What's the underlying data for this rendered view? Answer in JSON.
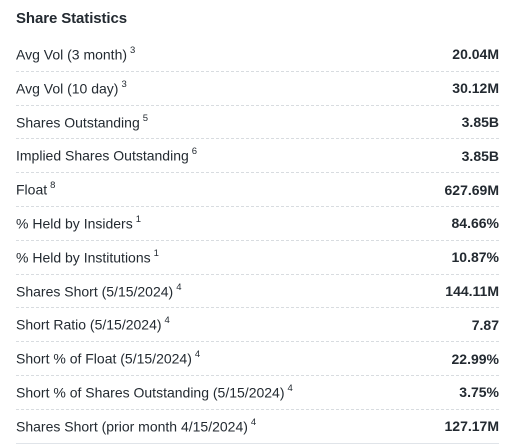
{
  "share_statistics": {
    "title": "Share Statistics",
    "rows": [
      {
        "label": "Avg Vol (3 month)",
        "footnote": "3",
        "value": "20.04M"
      },
      {
        "label": "Avg Vol (10 day)",
        "footnote": "3",
        "value": "30.12M"
      },
      {
        "label": "Shares Outstanding",
        "footnote": "5",
        "value": "3.85B"
      },
      {
        "label": "Implied Shares Outstanding",
        "footnote": "6",
        "value": "3.85B"
      },
      {
        "label": "Float",
        "footnote": "8",
        "value": "627.69M"
      },
      {
        "label": "% Held by Insiders",
        "footnote": "1",
        "value": "84.66%"
      },
      {
        "label": "% Held by Institutions",
        "footnote": "1",
        "value": "10.87%"
      },
      {
        "label": "Shares Short (5/15/2024)",
        "footnote": "4",
        "value": "144.11M"
      },
      {
        "label": "Short Ratio (5/15/2024)",
        "footnote": "4",
        "value": "7.87"
      },
      {
        "label": "Short % of Float (5/15/2024)",
        "footnote": "4",
        "value": "22.99%"
      },
      {
        "label": "Short % of Shares Outstanding (5/15/2024)",
        "footnote": "4",
        "value": "3.75%"
      },
      {
        "label": "Shares Short (prior month 4/15/2024)",
        "footnote": "4",
        "value": "127.17M"
      }
    ]
  }
}
